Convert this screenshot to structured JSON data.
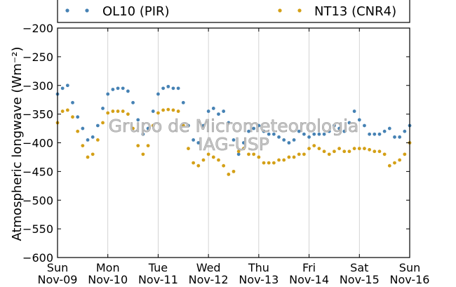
{
  "chart_data": {
    "type": "scatter",
    "ylabel": "Atmospheric longwave (Wm⁻²)",
    "ylim": [
      -600,
      -200
    ],
    "yticks": [
      -600,
      -550,
      -500,
      -450,
      -400,
      -350,
      -300,
      -250,
      -200
    ],
    "ytick_labels": [
      "−600",
      "−550",
      "−500",
      "−450",
      "−400",
      "−350",
      "−300",
      "−250",
      "−200"
    ],
    "xlim": [
      0,
      7
    ],
    "xticks": [
      {
        "day": "Sun",
        "date": "Nov-09"
      },
      {
        "day": "Mon",
        "date": "Nov-10"
      },
      {
        "day": "Tue",
        "date": "Nov-11"
      },
      {
        "day": "Wed",
        "date": "Nov-12"
      },
      {
        "day": "Thu",
        "date": "Nov-13"
      },
      {
        "day": "Fri",
        "date": "Nov-14"
      },
      {
        "day": "Sat",
        "date": "Nov-15"
      },
      {
        "day": "Sun",
        "date": "Nov-16"
      }
    ],
    "grid": "vertical",
    "legend_position": "top",
    "watermark": [
      "Grupo de Micrometeorologia",
      "IAG-USP"
    ],
    "series": [
      {
        "name": "OL10 (PIR)",
        "color": "#4682b4",
        "x": [
          0,
          0.1,
          0.2,
          0.3,
          0.4,
          0.5,
          0.6,
          0.7,
          0.8,
          0.9,
          1.0,
          1.1,
          1.2,
          1.3,
          1.4,
          1.5,
          1.6,
          1.7,
          1.8,
          1.9,
          2.0,
          2.1,
          2.2,
          2.3,
          2.4,
          2.5,
          2.6,
          2.7,
          2.8,
          2.9,
          3.0,
          3.1,
          3.2,
          3.3,
          3.4,
          3.5,
          3.6,
          3.7,
          3.8,
          3.9,
          4.0,
          4.1,
          4.2,
          4.3,
          4.4,
          4.5,
          4.6,
          4.7,
          4.8,
          4.9,
          5.0,
          5.1,
          5.2,
          5.3,
          5.4,
          5.5,
          5.6,
          5.7,
          5.8,
          5.9,
          6.0,
          6.1,
          6.2,
          6.3,
          6.4,
          6.5,
          6.6,
          6.7,
          6.8,
          6.9,
          7.0
        ],
        "y": [
          -315,
          -305,
          -300,
          -330,
          -355,
          -375,
          -395,
          -390,
          -370,
          -340,
          -315,
          -307,
          -305,
          -305,
          -310,
          -330,
          -360,
          -385,
          -375,
          -345,
          -315,
          -305,
          -302,
          -305,
          -305,
          -330,
          -370,
          -395,
          -400,
          -370,
          -345,
          -340,
          -350,
          -345,
          -365,
          -395,
          -420,
          -400,
          -380,
          -375,
          -370,
          -380,
          -385,
          -385,
          -390,
          -395,
          -400,
          -395,
          -380,
          -385,
          -390,
          -385,
          -385,
          -385,
          -380,
          -370,
          -375,
          -380,
          -365,
          -345,
          -360,
          -370,
          -385,
          -385,
          -385,
          -380,
          -375,
          -390,
          -390,
          -380,
          -370
        ]
      },
      {
        "name": "NT13 (CNR4)",
        "color": "#d4a017",
        "x": [
          0,
          0.1,
          0.2,
          0.3,
          0.4,
          0.5,
          0.6,
          0.7,
          0.8,
          0.9,
          1.0,
          1.1,
          1.2,
          1.3,
          1.4,
          1.5,
          1.6,
          1.7,
          1.8,
          1.9,
          2.0,
          2.1,
          2.2,
          2.3,
          2.4,
          2.5,
          2.6,
          2.7,
          2.8,
          2.9,
          3.0,
          3.1,
          3.2,
          3.3,
          3.4,
          3.5,
          3.6,
          3.7,
          3.8,
          3.9,
          4.0,
          4.1,
          4.2,
          4.3,
          4.4,
          4.5,
          4.6,
          4.7,
          4.8,
          4.9,
          5.0,
          5.1,
          5.2,
          5.3,
          5.4,
          5.5,
          5.6,
          5.7,
          5.8,
          5.9,
          6.0,
          6.1,
          6.2,
          6.3,
          6.4,
          6.5,
          6.6,
          6.7,
          6.8,
          6.9,
          7.0
        ],
        "y": [
          -365,
          -345,
          -343,
          -355,
          -380,
          -405,
          -425,
          -420,
          -395,
          -365,
          -348,
          -345,
          -345,
          -345,
          -350,
          -375,
          -405,
          -420,
          -405,
          -370,
          -348,
          -343,
          -342,
          -343,
          -345,
          -370,
          -410,
          -435,
          -440,
          -430,
          -420,
          -425,
          -430,
          -440,
          -455,
          -450,
          -415,
          -410,
          -420,
          -420,
          -425,
          -435,
          -435,
          -435,
          -430,
          -430,
          -425,
          -425,
          -420,
          -420,
          -410,
          -405,
          -410,
          -415,
          -420,
          -415,
          -410,
          -415,
          -415,
          -410,
          -410,
          -410,
          -412,
          -415,
          -415,
          -420,
          -440,
          -435,
          -430,
          -420,
          -400
        ]
      }
    ]
  }
}
